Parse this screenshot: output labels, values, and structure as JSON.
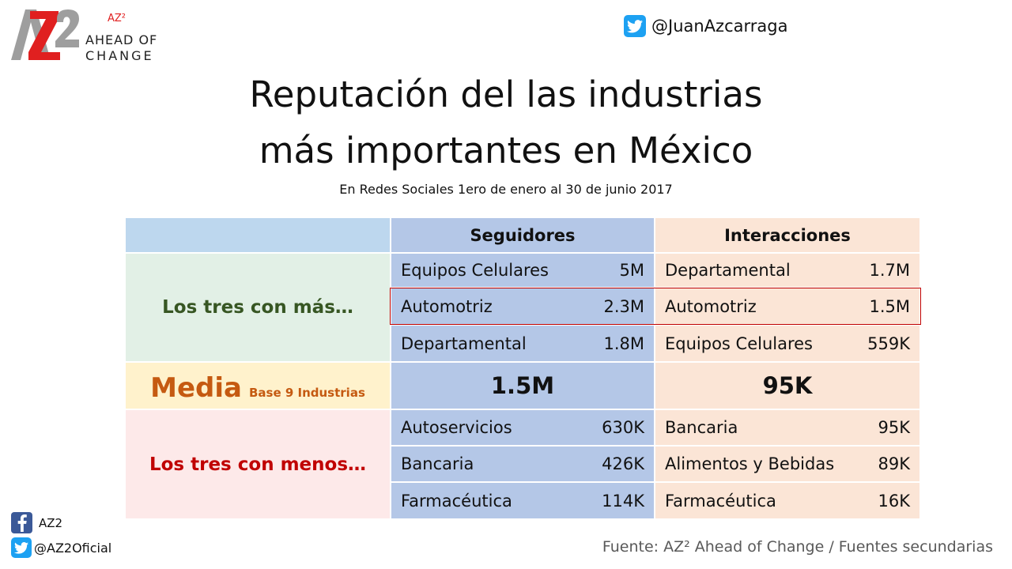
{
  "logo": {
    "mark": "AZ2",
    "superscript": "AZ²",
    "line1": "AHEAD OF",
    "line2": "CHANGE"
  },
  "twitter_top": {
    "icon": "twitter-icon",
    "handle": "@JuanAzcarraga"
  },
  "title": {
    "line1": "Reputación del las industrias",
    "line2": "más importantes en México",
    "subtitle": "En Redes Sociales 1ero de enero al 30 de junio 2017"
  },
  "table": {
    "headers": {
      "seguidores": "Seguidores",
      "interacciones": "Interacciones"
    },
    "top_label": "Los tres con más…",
    "media": {
      "label": "Media",
      "note": "Base 9 Industrias",
      "seguidores": "1.5M",
      "interacciones": "95K"
    },
    "bottom_label": "Los tres con menos…",
    "top_rows": [
      {
        "seg_name": "Equipos Celulares",
        "seg_val": "5M",
        "int_name": "Departamental",
        "int_val": "1.7M"
      },
      {
        "seg_name": "Automotriz",
        "seg_val": "2.3M",
        "int_name": "Automotriz",
        "int_val": "1.5M"
      },
      {
        "seg_name": "Departamental",
        "seg_val": "1.8M",
        "int_name": "Equipos Celulares",
        "int_val": "559K"
      }
    ],
    "bottom_rows": [
      {
        "seg_name": "Autoservicios",
        "seg_val": "630K",
        "int_name": "Bancaria",
        "int_val": "95K"
      },
      {
        "seg_name": "Bancaria",
        "seg_val": "426K",
        "int_name": "Alimentos y Bebidas",
        "int_val": "89K"
      },
      {
        "seg_name": "Farmacéutica",
        "seg_val": "114K",
        "int_name": "Farmacéutica",
        "int_val": "16K"
      }
    ]
  },
  "colors": {
    "header_left": "#bdd7ee",
    "seguidores": "#b4c7e7",
    "interacciones": "#fbe5d6",
    "top_label_bg": "#e2f0e6",
    "top_label_text": "#375623",
    "media_bg": "#fff2cc",
    "media_text": "#c55a11",
    "bottom_label_bg": "#fde9e9",
    "bottom_label_text": "#c00000",
    "highlight": "#c00000"
  },
  "social": {
    "facebook": {
      "icon": "facebook-icon",
      "handle": "AZ2"
    },
    "twitter": {
      "icon": "twitter-icon",
      "handle": "@AZ2Oficial"
    }
  },
  "source": "Fuente: AZ² Ahead of Change / Fuentes secundarias"
}
